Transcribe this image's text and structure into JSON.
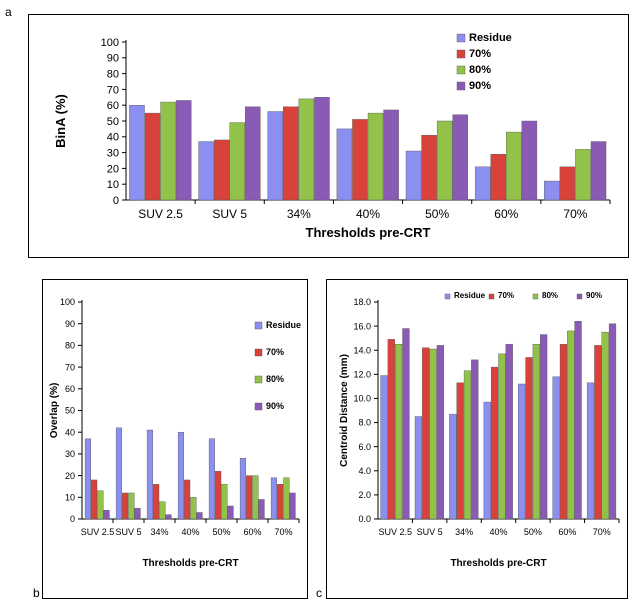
{
  "panels": {
    "a_letter": "a",
    "b_letter": "b",
    "c_letter": "c"
  },
  "colors": {
    "residue": "#8b8ff0",
    "p70": "#d9423b",
    "p80": "#92c24a",
    "p90": "#8a5bb5"
  },
  "chart_data": [
    {
      "type": "bar",
      "panel": "a",
      "categories": [
        "SUV 2.5",
        "SUV 5",
        "34%",
        "40%",
        "50%",
        "60%",
        "70%"
      ],
      "series": [
        {
          "name": "Residue",
          "values": [
            60,
            37,
            56,
            45,
            31,
            21,
            12
          ]
        },
        {
          "name": "70%",
          "values": [
            55,
            38,
            59,
            51,
            41,
            29,
            21
          ]
        },
        {
          "name": "80%",
          "values": [
            62,
            49,
            64,
            55,
            50,
            43,
            32
          ]
        },
        {
          "name": "90%",
          "values": [
            63,
            59,
            65,
            57,
            54,
            50,
            37
          ]
        }
      ],
      "xlabel": "Thresholds pre-CRT",
      "ylabel": "BinA (%)",
      "ylim": [
        0,
        100
      ],
      "yticks": [
        "0",
        "10",
        "20",
        "30",
        "40",
        "50",
        "60",
        "70",
        "80",
        "90",
        "100"
      ],
      "legend": "top-right"
    },
    {
      "type": "bar",
      "panel": "b",
      "categories": [
        "SUV 2.5",
        "SUV 5",
        "34%",
        "40%",
        "50%",
        "60%",
        "70%"
      ],
      "series": [
        {
          "name": "Residue",
          "values": [
            37,
            42,
            41,
            40,
            37,
            28,
            19
          ]
        },
        {
          "name": "70%",
          "values": [
            18,
            12,
            16,
            18,
            22,
            20,
            16
          ]
        },
        {
          "name": "80%",
          "values": [
            13,
            12,
            8,
            10,
            16,
            20,
            19
          ]
        },
        {
          "name": "90%",
          "values": [
            4,
            5,
            2,
            3,
            6,
            9,
            12
          ]
        }
      ],
      "xlabel": "Thresholds pre-CRT",
      "ylabel": "Overlap (%)",
      "ylim": [
        0,
        100
      ],
      "yticks": [
        "0",
        "10",
        "20",
        "30",
        "40",
        "50",
        "60",
        "70",
        "80",
        "90",
        "100"
      ],
      "legend": "right"
    },
    {
      "type": "bar",
      "panel": "c",
      "categories": [
        "SUV 2.5",
        "SUV 5",
        "34%",
        "40%",
        "50%",
        "60%",
        "70%"
      ],
      "series": [
        {
          "name": "Residue",
          "values": [
            11.9,
            8.5,
            8.7,
            9.7,
            11.2,
            11.8,
            11.3
          ]
        },
        {
          "name": "70%",
          "values": [
            14.9,
            14.2,
            11.3,
            12.6,
            13.4,
            14.5,
            14.4
          ]
        },
        {
          "name": "80%",
          "values": [
            14.5,
            14.1,
            12.3,
            13.7,
            14.5,
            15.6,
            15.5
          ]
        },
        {
          "name": "90%",
          "values": [
            15.8,
            14.4,
            13.2,
            14.5,
            15.3,
            16.4,
            16.2
          ]
        }
      ],
      "xlabel": "Thresholds pre-CRT",
      "ylabel": "Centroid Distance (mm)",
      "ylim": [
        0,
        18
      ],
      "yticks": [
        "0.0",
        "2.0",
        "4.0",
        "6.0",
        "8.0",
        "10.0",
        "12.0",
        "14.0",
        "16.0",
        "18.0"
      ],
      "legend": "top"
    }
  ]
}
